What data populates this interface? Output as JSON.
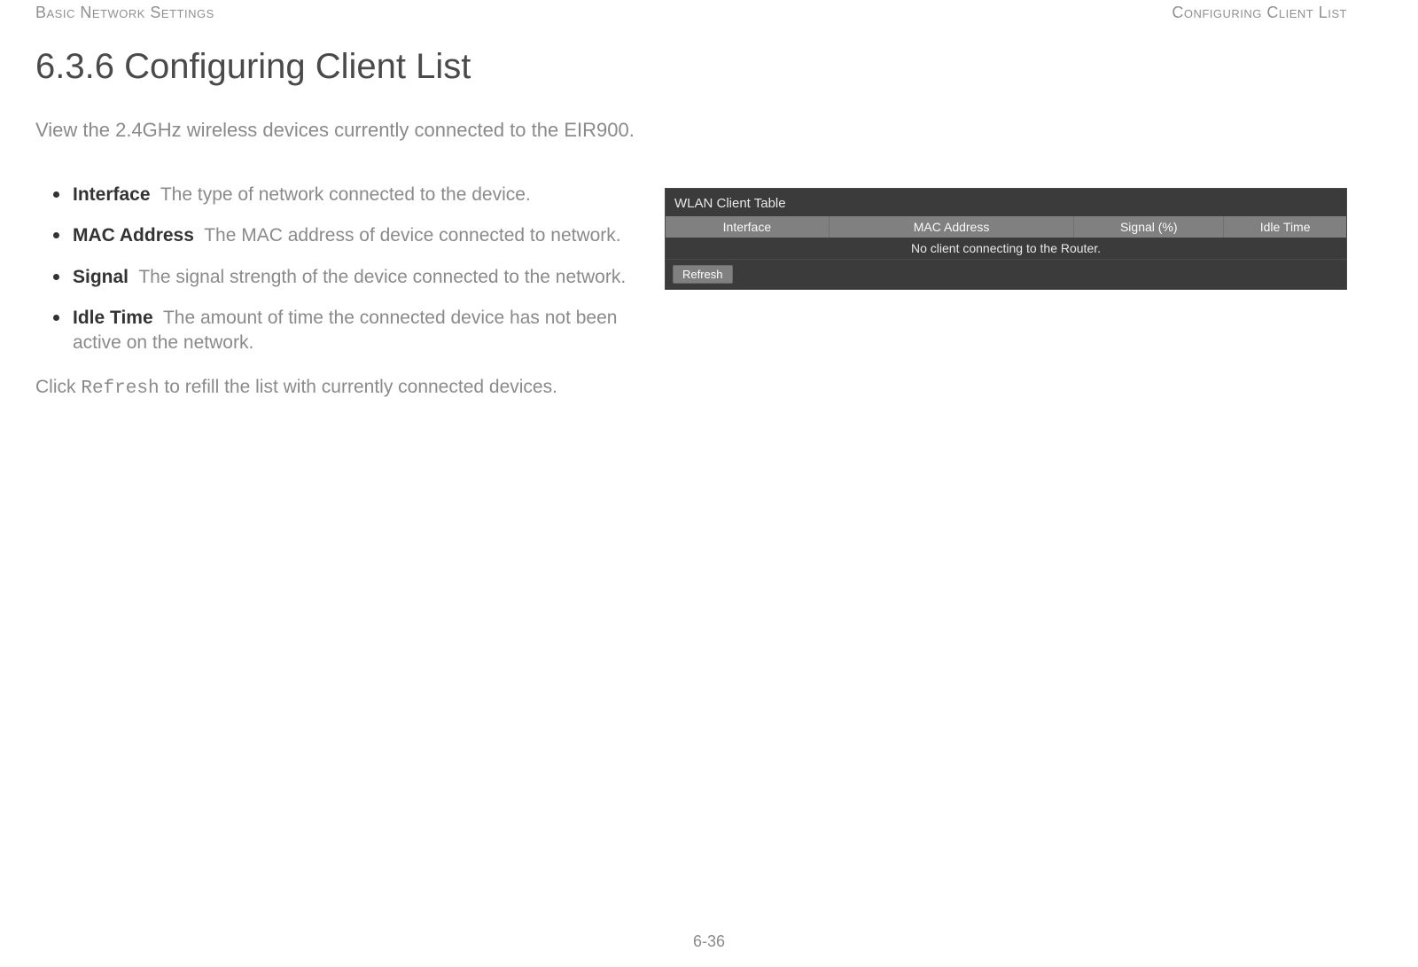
{
  "header": {
    "left": "Basic Network Settings",
    "right": "Configuring Client List"
  },
  "title": "6.3.6 Configuring Client List",
  "intro": "View the 2.4GHz wireless devices currently connected to the EIR900.",
  "definitions": [
    {
      "term": "Interface",
      "desc": "The type of network connected to the device."
    },
    {
      "term": "MAC Address",
      "desc": "The MAC address of device connected to network."
    },
    {
      "term": "Signal",
      "desc": "The signal strength of the device connected to the network."
    },
    {
      "term": "Idle Time",
      "desc": "The amount of time the connected device has not been active on the network."
    }
  ],
  "closing": {
    "pre": "Click ",
    "code": "Refresh",
    "post": " to refill the list with currently connected devices."
  },
  "screenshot": {
    "panel_title": "WLAN Client Table",
    "columns": [
      "Interface",
      "MAC Address",
      "Signal (%)",
      "Idle Time"
    ],
    "empty_message": "No client connecting to the Router.",
    "refresh_label": "Refresh",
    "colors": {
      "panel_bg": "#3b3b3b",
      "header_bg": "#808080",
      "text": "#e8e8e8",
      "button_bg": "#808080"
    }
  },
  "page_number": "6-36"
}
